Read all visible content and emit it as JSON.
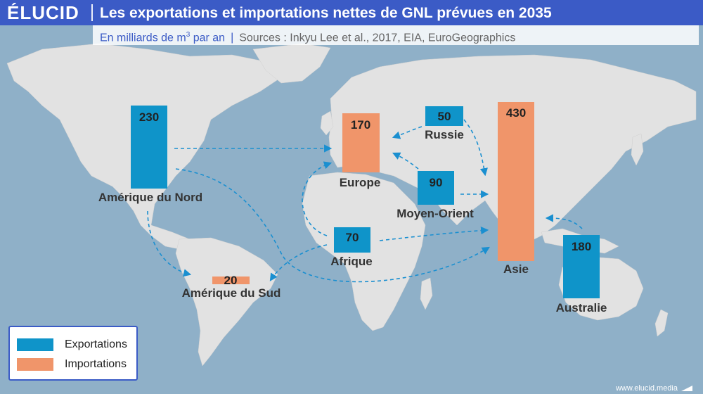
{
  "header": {
    "logo": "ÉLUCID",
    "title": "Les exportations et importations nettes de GNL prévues en 2035",
    "subtitle_prefix": "En milliards de m",
    "subtitle_sup": "3",
    "subtitle_suffix": " par an",
    "sources": "Sources : Inkyu Lee et al., 2017, EIA, EuroGeographics"
  },
  "colors": {
    "exports": "#0f94c9",
    "imports": "#f0956a",
    "brand": "#3b5bc6",
    "ocean": "#8fb0c8",
    "land": "#e2e2e2",
    "arrow": "#1a8fd0"
  },
  "legend": {
    "exports_label": "Exportations",
    "imports_label": "Importations"
  },
  "regions": [
    {
      "id": "amerique-du-nord",
      "name": "Amérique du Nord",
      "value": "230",
      "kind": "export"
    },
    {
      "id": "europe",
      "name": "Europe",
      "value": "170",
      "kind": "import"
    },
    {
      "id": "russie",
      "name": "Russie",
      "value": "50",
      "kind": "export"
    },
    {
      "id": "moyen-orient",
      "name": "Moyen-Orient",
      "value": "90",
      "kind": "export"
    },
    {
      "id": "asie",
      "name": "Asie",
      "value": "430",
      "kind": "import"
    },
    {
      "id": "afrique",
      "name": "Afrique",
      "value": "70",
      "kind": "export"
    },
    {
      "id": "amerique-du-sud",
      "name": "Amérique du Sud",
      "value": "20",
      "kind": "import"
    },
    {
      "id": "australie",
      "name": "Australie",
      "value": "180",
      "kind": "export"
    }
  ],
  "footer": {
    "url": "www.elucid.media"
  }
}
